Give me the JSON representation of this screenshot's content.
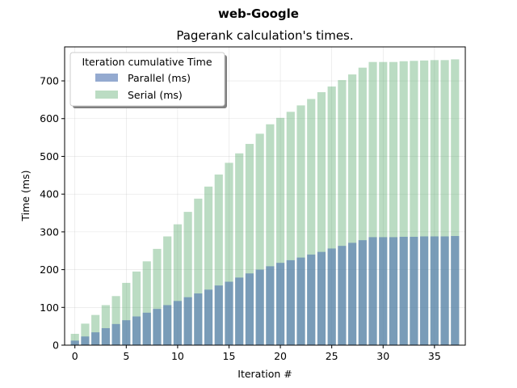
{
  "chart_data": {
    "type": "bar",
    "suptitle": "web-Google",
    "title": "Pagerank calculation's times.",
    "xlabel": "Iteration #",
    "ylabel": "Time (ms)",
    "xlim": [
      -1,
      38
    ],
    "ylim": [
      0,
      790
    ],
    "xticks": [
      0,
      5,
      10,
      15,
      20,
      25,
      30,
      35
    ],
    "yticks": [
      0,
      100,
      200,
      300,
      400,
      500,
      600,
      700
    ],
    "grid": true,
    "legend": {
      "title": "Iteration cumulative Time",
      "placement": "upper-left"
    },
    "x": [
      0,
      1,
      2,
      3,
      4,
      5,
      6,
      7,
      8,
      9,
      10,
      11,
      12,
      13,
      14,
      15,
      16,
      17,
      18,
      19,
      20,
      21,
      22,
      23,
      24,
      25,
      26,
      27,
      28,
      29,
      30,
      31,
      32,
      33,
      34,
      35,
      36,
      37
    ],
    "series": [
      {
        "name": "Parallel (ms)",
        "color": "#4c72b0",
        "opacity": 0.6,
        "values": [
          12,
          23,
          34,
          45,
          56,
          66,
          76,
          86,
          96,
          106,
          117,
          127,
          137,
          147,
          158,
          168,
          179,
          190,
          200,
          209,
          218,
          225,
          232,
          240,
          247,
          256,
          263,
          271,
          278,
          286,
          286,
          286,
          287,
          287,
          288,
          288,
          288,
          289
        ]
      },
      {
        "name": "Serial (ms)",
        "color": "#55a868",
        "opacity": 0.4,
        "values": [
          30,
          57,
          80,
          106,
          130,
          165,
          195,
          222,
          255,
          288,
          320,
          353,
          388,
          420,
          452,
          483,
          508,
          533,
          560,
          585,
          602,
          618,
          635,
          652,
          670,
          685,
          702,
          717,
          735,
          750,
          750,
          750,
          752,
          753,
          754,
          755,
          755,
          757
        ]
      }
    ]
  }
}
